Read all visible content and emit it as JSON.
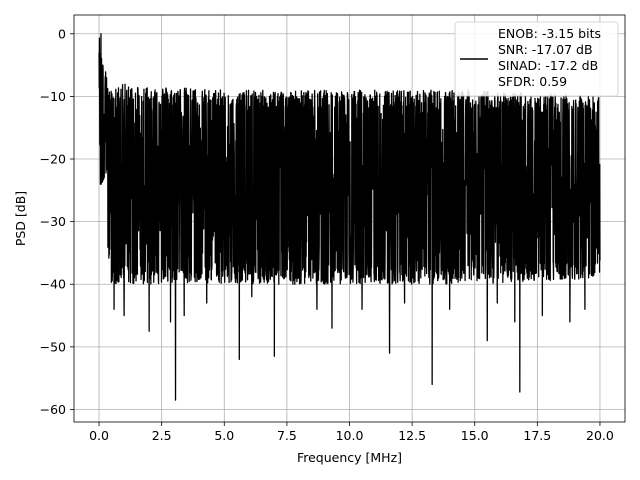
{
  "chart_data": {
    "type": "line",
    "title": "",
    "xlabel": "Frequency [MHz]",
    "ylabel": "PSD [dB]",
    "xlim": [
      -1.0,
      21.0
    ],
    "ylim": [
      -62.0,
      3.0
    ],
    "x_ticks": [
      0.0,
      2.5,
      5.0,
      7.5,
      10.0,
      12.5,
      15.0,
      17.5,
      20.0
    ],
    "x_tick_labels": [
      "0.0",
      "2.5",
      "5.0",
      "7.5",
      "10.0",
      "12.5",
      "15.0",
      "17.5",
      "20.0"
    ],
    "y_ticks": [
      0,
      -10,
      -20,
      -30,
      -40,
      -50,
      -60
    ],
    "y_tick_labels": [
      "0",
      "−10",
      "−20",
      "−30",
      "−40",
      "−50",
      "−60"
    ],
    "grid": true,
    "legend": {
      "placement": "top-right",
      "entries": [
        "ENOB: -3.15 bits",
        "SNR: -17.07 dB",
        "SINAD: -17.2 dB",
        "SFDR: 0.59"
      ]
    },
    "series": [
      {
        "color": "#000000",
        "x_start": 0.0,
        "x_end": 20.0,
        "envelope_upper": [
          [
            0.0,
            -3
          ],
          [
            0.4,
            -12
          ],
          [
            1.0,
            -11
          ],
          [
            5.0,
            -12
          ],
          [
            10.0,
            -12
          ],
          [
            15.0,
            -12
          ],
          [
            20.0,
            -13
          ]
        ],
        "envelope_lower": [
          [
            0.0,
            -20
          ],
          [
            0.5,
            -37
          ],
          [
            5.0,
            -37
          ],
          [
            10.0,
            -37
          ],
          [
            15.0,
            -37
          ],
          [
            20.0,
            -36
          ]
        ],
        "peaks": [
          [
            0.0,
            -3
          ],
          [
            0.08,
            0
          ],
          [
            0.15,
            -5
          ],
          [
            0.3,
            -7
          ],
          [
            1.1,
            -9.5
          ],
          [
            2.2,
            -10
          ],
          [
            5.5,
            -10.5
          ],
          [
            13.4,
            -11
          ],
          [
            19.6,
            -12
          ]
        ],
        "dips": [
          [
            3.05,
            -58.5
          ],
          [
            16.8,
            -57.2
          ],
          [
            13.3,
            -56.0
          ],
          [
            5.6,
            -52
          ],
          [
            7.0,
            -51.5
          ],
          [
            11.6,
            -51
          ],
          [
            15.5,
            -49
          ],
          [
            2.0,
            -47.5
          ],
          [
            9.3,
            -47
          ],
          [
            2.85,
            -46
          ],
          [
            16.6,
            -46
          ],
          [
            3.4,
            -45
          ],
          [
            0.6,
            -44
          ],
          [
            1.0,
            -45
          ],
          [
            4.3,
            -43
          ],
          [
            8.7,
            -44
          ],
          [
            12.2,
            -43
          ],
          [
            14.0,
            -44
          ],
          [
            17.7,
            -45
          ],
          [
            18.8,
            -46
          ],
          [
            19.4,
            -44
          ],
          [
            6.1,
            -42
          ],
          [
            10.5,
            -44
          ],
          [
            15.9,
            -43
          ]
        ]
      }
    ]
  }
}
